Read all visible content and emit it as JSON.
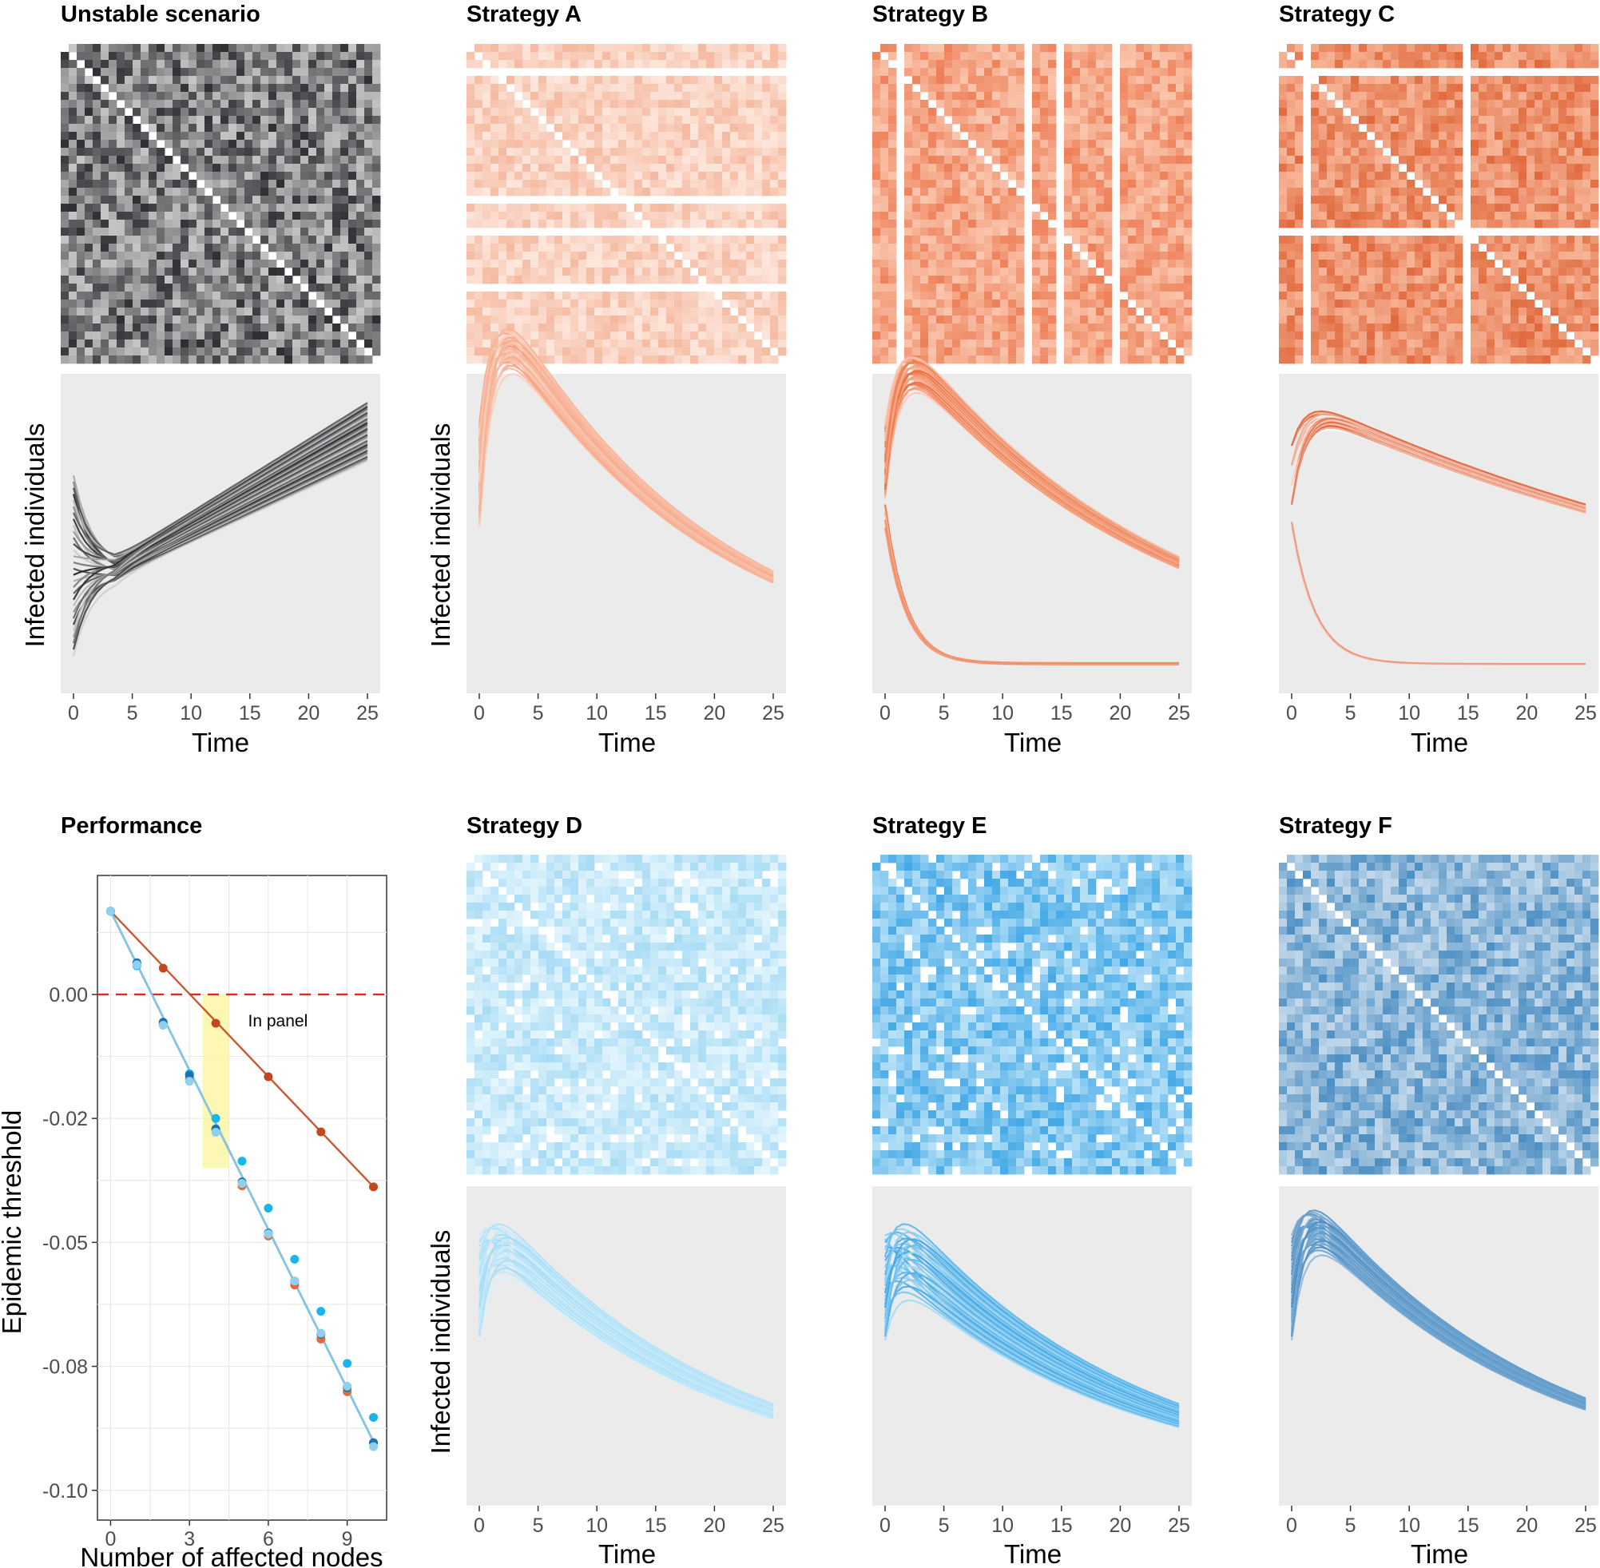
{
  "chart_data": [
    {
      "type": "heatmap",
      "id": "unstable-heatmap",
      "title": "Unstable scenario",
      "size": 40,
      "palette": "grey",
      "removed_rows": [],
      "removed_cols": [],
      "colors": {
        "low": "#c6c6c6",
        "high": "#2e2e33"
      }
    },
    {
      "type": "line",
      "id": "unstable-dynamics",
      "xlabel": "Time",
      "ylabel": "Infected individuals",
      "xlim": [
        0,
        25
      ],
      "ylim": [
        0,
        1
      ],
      "xticks": [
        0,
        5,
        10,
        15,
        20,
        25
      ],
      "series_count": 30,
      "groups": [
        {
          "count": 30,
          "start_range": [
            0.08,
            0.7
          ],
          "end_range": [
            0.75,
            0.95
          ],
          "min_t": 3.5
        }
      ],
      "colors": {
        "light": "#d0d0d0",
        "dark": "#25252a"
      }
    },
    {
      "type": "heatmap",
      "id": "strategy-a-heatmap",
      "title": "Strategy A",
      "size": 40,
      "palette": "salmon",
      "removed_rows": [
        3,
        19,
        23,
        30
      ],
      "removed_cols": [],
      "colors": {
        "low": "#fde6dc",
        "high": "#f5b99f"
      }
    },
    {
      "type": "line",
      "id": "strategy-a-dynamics",
      "xlabel": "Time",
      "ylabel": "Infected individuals",
      "xlim": [
        0,
        25
      ],
      "ylim": [
        0,
        1
      ],
      "xticks": [
        0,
        5,
        10,
        15,
        20,
        25
      ],
      "series_count": 24,
      "groups": [
        {
          "count": 24,
          "start_range": [
            0.52,
            0.88
          ],
          "end_range": [
            0.33,
            0.37
          ],
          "decay": 0.055
        }
      ],
      "colors": {
        "light": "#fbd0bd",
        "dark": "#f4a07f"
      }
    },
    {
      "type": "heatmap",
      "id": "strategy-b-heatmap",
      "title": "Strategy B",
      "size": 40,
      "palette": "orange",
      "removed_rows": [],
      "removed_cols": [
        3,
        19,
        23,
        30
      ],
      "colors": {
        "low": "#fac6ae",
        "high": "#ee8058"
      }
    },
    {
      "type": "line",
      "id": "strategy-b-dynamics",
      "xlabel": "Time",
      "ylabel": "Infected individuals",
      "xlim": [
        0,
        25
      ],
      "ylim": [
        0,
        1
      ],
      "xticks": [
        0,
        5,
        10,
        15,
        20,
        25
      ],
      "series_count": 30,
      "groups": [
        {
          "count": 26,
          "start_range": [
            0.62,
            0.88
          ],
          "end_range": [
            0.38,
            0.42
          ],
          "decay": 0.045
        },
        {
          "count": 4,
          "start_range": [
            0.52,
            0.6
          ],
          "end_range": [
            0.05,
            0.055
          ],
          "fast": 0.55
        }
      ],
      "colors": {
        "light": "#fbcab4",
        "dark": "#ea6f40"
      }
    },
    {
      "type": "heatmap",
      "id": "strategy-c-heatmap",
      "title": "Strategy C",
      "size": 40,
      "palette": "orange",
      "removed_rows": [
        3,
        23
      ],
      "removed_cols": [
        3,
        23
      ],
      "colors": {
        "low": "#f7b497",
        "high": "#e16a3d"
      }
    },
    {
      "type": "line",
      "id": "strategy-c-dynamics",
      "xlabel": "Time",
      "ylabel": "Infected individuals",
      "xlim": [
        0,
        25
      ],
      "ylim": [
        0,
        1
      ],
      "xticks": [
        0,
        5,
        10,
        15,
        20,
        25
      ],
      "series_count": 30,
      "groups": [
        {
          "count": 28,
          "start_range": [
            0.6,
            0.86
          ],
          "end_range": [
            0.57,
            0.6
          ],
          "decay": 0.02
        },
        {
          "count": 2,
          "start_range": [
            0.52,
            0.54
          ],
          "end_range": [
            0.05,
            0.052
          ],
          "fast": 0.5
        }
      ],
      "colors": {
        "light": "#ffffff",
        "dark": "#df6033"
      }
    },
    {
      "type": "scatter",
      "id": "performance",
      "title": "Performance",
      "xlabel": "Number of affected nodes",
      "ylabel": "Epidemic threshold",
      "xlim": [
        -0.5,
        10.5
      ],
      "ylim": [
        -0.106,
        0.024
      ],
      "xticks": [
        0,
        3,
        6,
        9
      ],
      "yticks": [
        0.0,
        -0.025,
        -0.05,
        -0.075,
        -0.1
      ],
      "ytick_labels": [
        "0.00",
        "-0.02",
        "-0.05",
        "-0.08",
        "-0.10"
      ],
      "reference_line": 0.0,
      "highlight": {
        "x": [
          3.5,
          4.5
        ],
        "y": [
          -0.035,
          0.0
        ],
        "label": "In panel"
      },
      "series": [
        {
          "color": "#c4461c",
          "x": [
            0,
            2,
            4,
            6,
            8,
            10
          ],
          "y": [
            0.0168,
            0.0053,
            -0.0058,
            -0.0166,
            -0.0277,
            -0.0388
          ],
          "fit": [
            0.0168,
            -0.0388
          ]
        },
        {
          "color": "#e8683a",
          "x": [
            0,
            1,
            2,
            3,
            4,
            5,
            6,
            7,
            8,
            9,
            10
          ],
          "y": [
            0.0168,
            0.0062,
            -0.0061,
            -0.017,
            -0.0272,
            -0.0386,
            -0.0487,
            -0.0586,
            -0.0695,
            -0.0801,
            -0.0904
          ],
          "fit": [
            0.0168,
            -0.0902
          ]
        },
        {
          "color": "#1ab6ea",
          "x": [
            0,
            1,
            2,
            3,
            4,
            5,
            6,
            7,
            8,
            9,
            10
          ],
          "y": [
            0.0168,
            0.0058,
            -0.0058,
            -0.016,
            -0.025,
            -0.0336,
            -0.0431,
            -0.0534,
            -0.0639,
            -0.0744,
            -0.0853
          ],
          "fit": [
            0.0168,
            -0.0902
          ]
        },
        {
          "color": "#1a73b0",
          "x": [
            0,
            1,
            2,
            3,
            4,
            5,
            6,
            7,
            8,
            9,
            10
          ],
          "y": [
            0.0168,
            0.0064,
            -0.0056,
            -0.0163,
            -0.0271,
            -0.0378,
            -0.0481,
            -0.0578,
            -0.0685,
            -0.0793,
            -0.0904
          ],
          "fit": [
            0.0168,
            -0.0902
          ]
        },
        {
          "color": "#8fd0ee",
          "x": [
            0,
            1,
            2,
            3,
            4,
            5,
            6,
            7,
            8,
            9,
            10
          ],
          "y": [
            0.0168,
            0.006,
            -0.0062,
            -0.0175,
            -0.0278,
            -0.0381,
            -0.0483,
            -0.0578,
            -0.0683,
            -0.079,
            -0.0912
          ],
          "fit": [
            0.0168,
            -0.0902
          ]
        }
      ]
    },
    {
      "type": "heatmap",
      "id": "strategy-d-heatmap",
      "title": "Strategy D",
      "size": 40,
      "palette": "lightblue",
      "removed_rows": [],
      "removed_cols": [],
      "holes": 0.09,
      "colors": {
        "low": "#e3f5fd",
        "high": "#a8dcf5"
      }
    },
    {
      "type": "line",
      "id": "strategy-d-dynamics",
      "xlabel": "Time",
      "ylabel": "Infected individuals",
      "xlim": [
        0,
        25
      ],
      "ylim": [
        0,
        1
      ],
      "xticks": [
        0,
        5,
        10,
        15,
        20,
        25
      ],
      "series_count": 30,
      "groups": [
        {
          "count": 30,
          "start_range": [
            0.52,
            0.88
          ],
          "end_range": [
            0.25,
            0.3
          ],
          "decay": 0.05
        }
      ],
      "colors": {
        "light": "#d7f0fc",
        "dark": "#a1dbf5"
      }
    },
    {
      "type": "heatmap",
      "id": "strategy-e-heatmap",
      "title": "Strategy E",
      "size": 40,
      "palette": "blue",
      "removed_rows": [],
      "removed_cols": [],
      "holes": 0.09,
      "colors": {
        "low": "#b7e1f7",
        "high": "#45a9e6"
      }
    },
    {
      "type": "line",
      "id": "strategy-e-dynamics",
      "xlabel": "Time",
      "ylabel": "Infected individuals",
      "xlim": [
        0,
        25
      ],
      "ylim": [
        0,
        1
      ],
      "xticks": [
        0,
        5,
        10,
        15,
        20,
        25
      ],
      "series_count": 30,
      "groups": [
        {
          "count": 30,
          "start_range": [
            0.52,
            0.88
          ],
          "end_range": [
            0.22,
            0.3
          ],
          "decay": 0.05
        }
      ],
      "colors": {
        "light": "#a9dcf7",
        "dark": "#3da6e4"
      }
    },
    {
      "type": "heatmap",
      "id": "strategy-f-heatmap",
      "title": "Strategy F",
      "size": 40,
      "palette": "steelblue",
      "removed_rows": [],
      "removed_cols": [],
      "colors": {
        "low": "#c2d8ea",
        "high": "#4c8fc3"
      }
    },
    {
      "type": "line",
      "id": "strategy-f-dynamics",
      "xlabel": "Time",
      "ylabel": "",
      "xlim": [
        0,
        25
      ],
      "ylim": [
        0,
        1
      ],
      "xticks": [
        0,
        5,
        10,
        15,
        20,
        25
      ],
      "series_count": 30,
      "groups": [
        {
          "count": 30,
          "start_range": [
            0.52,
            0.88
          ],
          "end_range": [
            0.28,
            0.32
          ],
          "decay": 0.05
        }
      ],
      "colors": {
        "light": "#8fb9dc",
        "dark": "#4a8cc1"
      }
    }
  ]
}
